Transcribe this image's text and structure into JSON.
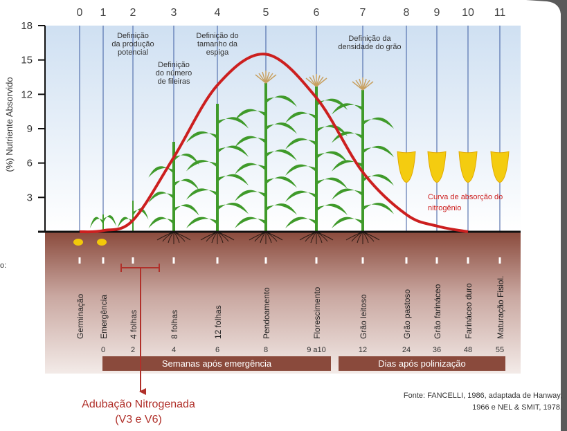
{
  "chart_data": {
    "type": "line",
    "y_label": "(%) Nutriente Absorvido",
    "ylim": [
      0,
      18
    ],
    "yticks": [
      3,
      6,
      9,
      12,
      15,
      18
    ],
    "categories": [
      "0",
      "1",
      "2",
      "3",
      "4",
      "5",
      "6",
      "7",
      "8",
      "9",
      "10",
      "11"
    ],
    "stage_names": [
      "Germinação",
      "Emergência",
      "4 folhas",
      "8 folhas",
      "12 folhas",
      "Pendoamento",
      "Florescimento",
      "Grão leitoso",
      "Grão pastoso",
      "Grão farináceo",
      "Farináceo duro",
      "Maturação Fisiol."
    ],
    "timeline_labels": [
      null,
      "0",
      "2",
      "4",
      "6",
      "8",
      "9 a10",
      "12",
      "24",
      "36",
      "48",
      "55"
    ],
    "timeline_bars": [
      "Semanas após emergência",
      "Dias após polinização"
    ],
    "series": [
      {
        "name": "Curva de absorção do nitrogênio",
        "color": "#cc1f1f",
        "values": [
          0,
          0.1,
          1,
          6.5,
          12.8,
          15.5,
          11.7,
          5.2,
          1.5,
          0.5,
          0,
          null
        ]
      }
    ],
    "annotations": [
      {
        "lines": [
          "Definição",
          "da produção",
          "potencial"
        ]
      },
      {
        "lines": [
          "Definição",
          "do número",
          "de fileiras"
        ]
      },
      {
        "lines": [
          "Definição do",
          "tamanho da",
          "espiga"
        ]
      },
      {
        "lines": [
          "Definição da",
          "densidade do grão"
        ]
      }
    ],
    "fertilization": {
      "title": "Adubação Nitrogenada",
      "subtitle": "(V3 e V6)"
    },
    "source": [
      "Fonte: FANCELLI, 1986, adaptada de Hanway,",
      "1966 e NEL & SMIT, 1978."
    ],
    "cut_text": "o:"
  }
}
